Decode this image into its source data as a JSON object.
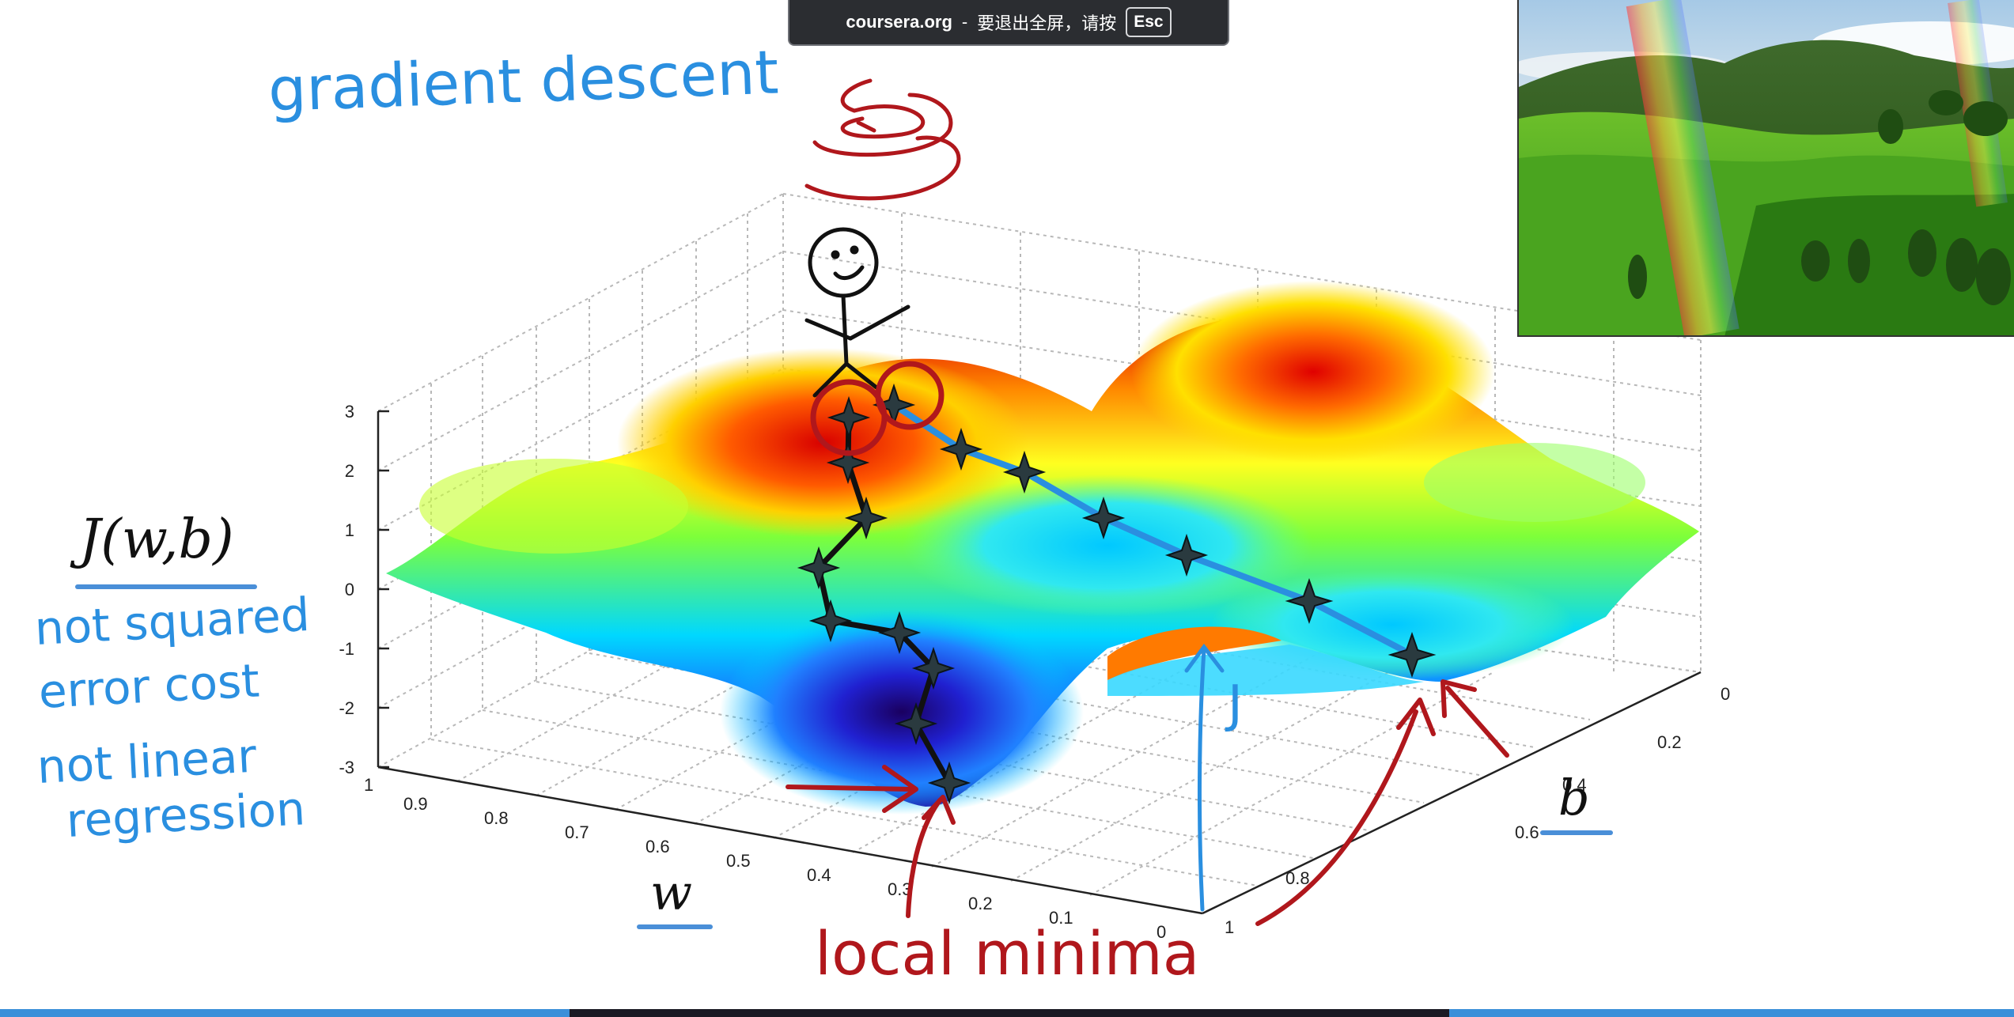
{
  "toast": {
    "site": "coursera.org",
    "sep": "-",
    "message": "要退出全屏，请按",
    "key": "Esc"
  },
  "slide": {
    "heading": "gradient descent",
    "cost_label": "J(w,b)",
    "note1_line1": "not squared",
    "note1_line2": "error cost",
    "note2_line1": "not linear",
    "note2_line2": "regression",
    "w_label": "w",
    "b_label": "b",
    "j_label": "J",
    "minima_label": "local minima",
    "z_ticks": [
      "3",
      "2",
      "1",
      "0",
      "-1",
      "-2",
      "-3"
    ],
    "w_ticks": [
      "1",
      "0.9",
      "0.8",
      "0.7",
      "0.6",
      "0.5",
      "0.4",
      "0.3",
      "0.2",
      "0.1",
      "0"
    ],
    "b_ticks": [
      "0",
      "0.2",
      "0.4",
      "0.6",
      "0.8",
      "1"
    ]
  },
  "colors": {
    "ink_blue": "#2a8fe0",
    "ink_red": "#b0171c",
    "ink_black": "#111111",
    "toast_bg": "#2b2d31",
    "progress": "#3a8fd9"
  },
  "icons": {
    "star_marker": "four-point-star-icon",
    "stick_figure": "stick-figure-icon"
  }
}
